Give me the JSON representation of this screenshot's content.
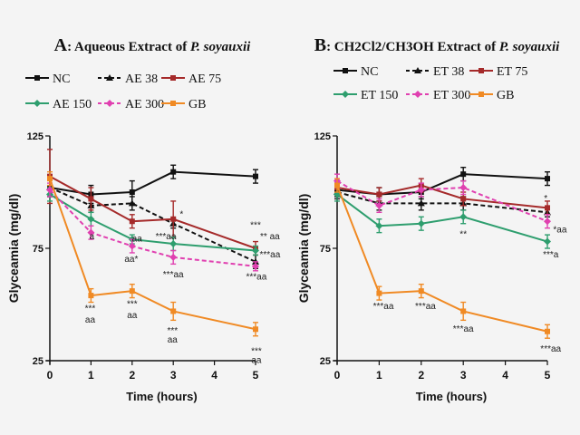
{
  "panels": [
    {
      "letter": "A",
      "title": ": Aqueous Extract of ",
      "species": "P. soyauxii",
      "chart_data": {
        "type": "line",
        "xlabel": "Time (hours)",
        "ylabel": "Glyceamia (mg/dl)",
        "x_ticks": [
          0,
          1,
          2,
          3,
          4,
          5
        ],
        "y_ticks": [
          25,
          75,
          125
        ],
        "xlim": [
          0,
          5
        ],
        "ylim": [
          25,
          125
        ],
        "legend_position": "top",
        "series": [
          {
            "name": "NC",
            "color": "#111111",
            "dash": "solid",
            "marker": "square",
            "x": [
              0,
              1,
              2,
              3,
              5
            ],
            "y": [
              102,
              99,
              100,
              109,
              107
            ],
            "err": [
              4,
              4,
              5,
              3,
              3
            ]
          },
          {
            "name": "AE 38",
            "color": "#111111",
            "dash": "dashed",
            "marker": "triangle",
            "x": [
              0,
              1,
              2,
              3,
              5
            ],
            "y": [
              102,
              94,
              95,
              86,
              69
            ],
            "err": [
              4,
              3,
              3,
              2,
              3
            ]
          },
          {
            "name": "AE 75",
            "color": "#a52a2a",
            "dash": "solid",
            "marker": "square",
            "x": [
              0,
              1,
              2,
              3,
              5
            ],
            "y": [
              107,
              97,
              87,
              88,
              75
            ],
            "err": [
              12,
              5,
              3,
              8,
              3
            ]
          },
          {
            "name": "AE 150",
            "color": "#2e9e6e",
            "dash": "solid",
            "marker": "diamond",
            "x": [
              0,
              1,
              2,
              3,
              5
            ],
            "y": [
              99,
              88,
              79,
              77,
              74
            ],
            "err": [
              3,
              3,
              2,
              3,
              2
            ]
          },
          {
            "name": "AE 300",
            "color": "#e040b0",
            "dash": "dashed",
            "marker": "diamond",
            "x": [
              0,
              1,
              2,
              3,
              5
            ],
            "y": [
              101,
              82,
              76,
              71,
              67
            ],
            "err": [
              3,
              3,
              3,
              3,
              2
            ]
          },
          {
            "name": "GB",
            "color": "#f08a24",
            "dash": "solid",
            "marker": "square",
            "x": [
              0,
              1,
              2,
              3,
              5
            ],
            "y": [
              106,
              54,
              56,
              47,
              39
            ],
            "err": [
              3,
              3,
              3,
              4,
              3
            ]
          }
        ],
        "annotations": [
          {
            "text": "*",
            "x": 3.2,
            "y": 89
          },
          {
            "text": "***aa",
            "x": 2.82,
            "y": 79
          },
          {
            "text": "a",
            "x": 1.02,
            "y": 79
          },
          {
            "text": "aa",
            "x": 2.12,
            "y": 78
          },
          {
            "text": "aa*",
            "x": 1.98,
            "y": 69
          },
          {
            "text": "***aa",
            "x": 3.0,
            "y": 62
          },
          {
            "text": "***",
            "x": 5.0,
            "y": 84
          },
          {
            "text": "** aa",
            "x": 5.35,
            "y": 79
          },
          {
            "text": "***aa",
            "x": 5.35,
            "y": 71
          },
          {
            "text": "***aa",
            "x": 5.02,
            "y": 61
          },
          {
            "text": "***",
            "x": 0.98,
            "y": 47
          },
          {
            "text": "aa",
            "x": 0.98,
            "y": 42
          },
          {
            "text": "***",
            "x": 2.0,
            "y": 49
          },
          {
            "text": "aa",
            "x": 2.0,
            "y": 44
          },
          {
            "text": "***",
            "x": 2.98,
            "y": 37
          },
          {
            "text": "aa",
            "x": 2.98,
            "y": 33
          },
          {
            "text": "***",
            "x": 5.02,
            "y": 28
          },
          {
            "text": "aa",
            "x": 5.02,
            "y": 24
          }
        ]
      }
    },
    {
      "letter": "B",
      "title": ": CH2Cl2/CH3OH Extract of ",
      "species": "P. soyauxii",
      "chart_data": {
        "type": "line",
        "xlabel": "Time (hours)",
        "ylabel": "Glyceamia (mg/dl)",
        "x_ticks": [
          0,
          1,
          2,
          3,
          4,
          5
        ],
        "y_ticks": [
          25,
          75,
          125
        ],
        "xlim": [
          0,
          5
        ],
        "ylim": [
          25,
          125
        ],
        "legend_position": "top",
        "series": [
          {
            "name": "NC",
            "color": "#111111",
            "dash": "solid",
            "marker": "square",
            "x": [
              0,
              1,
              2,
              3,
              5
            ],
            "y": [
              101,
              99,
              100,
              108,
              106
            ],
            "err": [
              3,
              3,
              3,
              3,
              3
            ]
          },
          {
            "name": "ET 38",
            "color": "#111111",
            "dash": "dashed",
            "marker": "triangle",
            "x": [
              0,
              1,
              2,
              3,
              5
            ],
            "y": [
              100,
              95,
              95,
              95,
              91
            ],
            "err": [
              3,
              3,
              3,
              3,
              2
            ]
          },
          {
            "name": "ET 75",
            "color": "#a52a2a",
            "dash": "solid",
            "marker": "square",
            "x": [
              0,
              1,
              2,
              3,
              5
            ],
            "y": [
              102,
              99,
              103,
              97,
              93
            ],
            "err": [
              3,
              3,
              3,
              3,
              3
            ]
          },
          {
            "name": "ET 150",
            "color": "#2e9e6e",
            "dash": "solid",
            "marker": "diamond",
            "x": [
              0,
              1,
              2,
              3,
              5
            ],
            "y": [
              99,
              85,
              86,
              89,
              78
            ],
            "err": [
              3,
              3,
              3,
              3,
              3
            ]
          },
          {
            "name": "ET 300",
            "color": "#e040b0",
            "dash": "dashed",
            "marker": "diamond",
            "x": [
              0,
              1,
              2,
              3,
              5
            ],
            "y": [
              105,
              94,
              101,
              102,
              87
            ],
            "err": [
              3,
              3,
              3,
              3,
              3
            ]
          },
          {
            "name": "GB",
            "color": "#f08a24",
            "dash": "solid",
            "marker": "square",
            "x": [
              0,
              1,
              2,
              3,
              5
            ],
            "y": [
              103,
              55,
              56,
              47,
              38
            ],
            "err": [
              3,
              3,
              3,
              4,
              3
            ]
          }
        ],
        "annotations": [
          {
            "text": "*",
            "x": 4.96,
            "y": 96
          },
          {
            "text": "*aa",
            "x": 5.3,
            "y": 82
          },
          {
            "text": "**",
            "x": 3.0,
            "y": 80
          },
          {
            "text": "***a",
            "x": 5.08,
            "y": 71
          },
          {
            "text": "***aa",
            "x": 1.1,
            "y": 48
          },
          {
            "text": "***aa",
            "x": 2.1,
            "y": 48
          },
          {
            "text": "***aa",
            "x": 3.0,
            "y": 38
          },
          {
            "text": "***aa",
            "x": 5.08,
            "y": 29
          }
        ]
      }
    }
  ]
}
